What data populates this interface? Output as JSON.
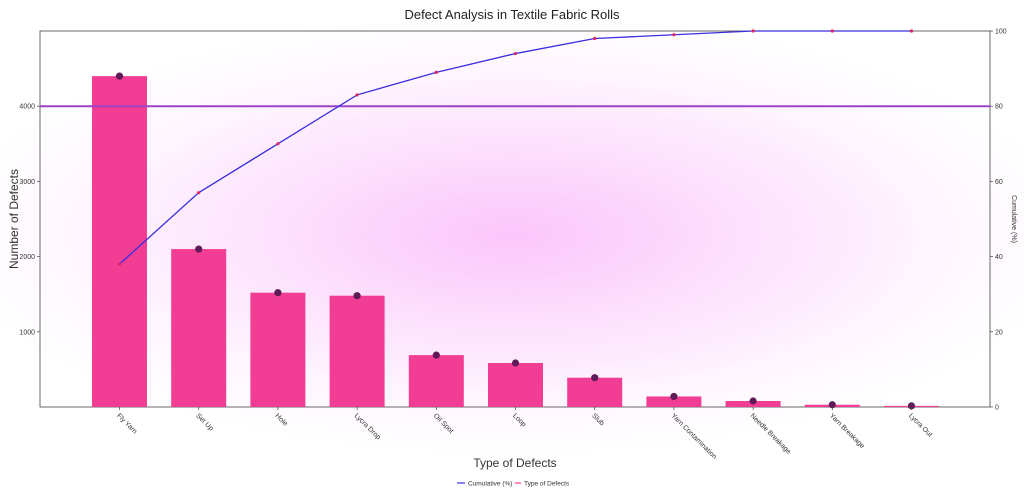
{
  "chart_data": {
    "type": "bar",
    "title": "Defect Analysis in Textile Fabric Rolls",
    "xlabel": "Type of Defects",
    "ylabel": "Number of Defects",
    "y2label": "Cumulative (%)",
    "categories": [
      "Fly Yarn",
      "Set Up",
      "Hole",
      "Lycra Drop",
      "Oil Spot",
      "Loop",
      "Slub",
      "Yarn Contamination",
      "Needle Breakage",
      "Yarn Breakage",
      "Lycra Out"
    ],
    "series": [
      {
        "name": "Type of Defects",
        "axis": "left",
        "kind": "bar",
        "color": "#f23d94",
        "values": [
          4400,
          2100,
          1520,
          1480,
          690,
          585,
          390,
          140,
          80,
          30,
          15
        ]
      },
      {
        "name": "Cumulative (%)",
        "axis": "right",
        "kind": "line",
        "color": "#3a2ee0",
        "marker_color": "#e2245e",
        "values": [
          38,
          57,
          70,
          83,
          89,
          94,
          98,
          99,
          100,
          100,
          100
        ]
      }
    ],
    "reference_line": {
      "axis": "right",
      "value": 80,
      "color": "#9d43c4"
    },
    "ylim": [
      0,
      5000
    ],
    "y_ticks": [
      1000,
      2000,
      3000,
      4000
    ],
    "y2lim": [
      0,
      100
    ],
    "y2_ticks": [
      0,
      20,
      40,
      60,
      80,
      100
    ],
    "grid": false,
    "legend_position": "bottom-center"
  }
}
